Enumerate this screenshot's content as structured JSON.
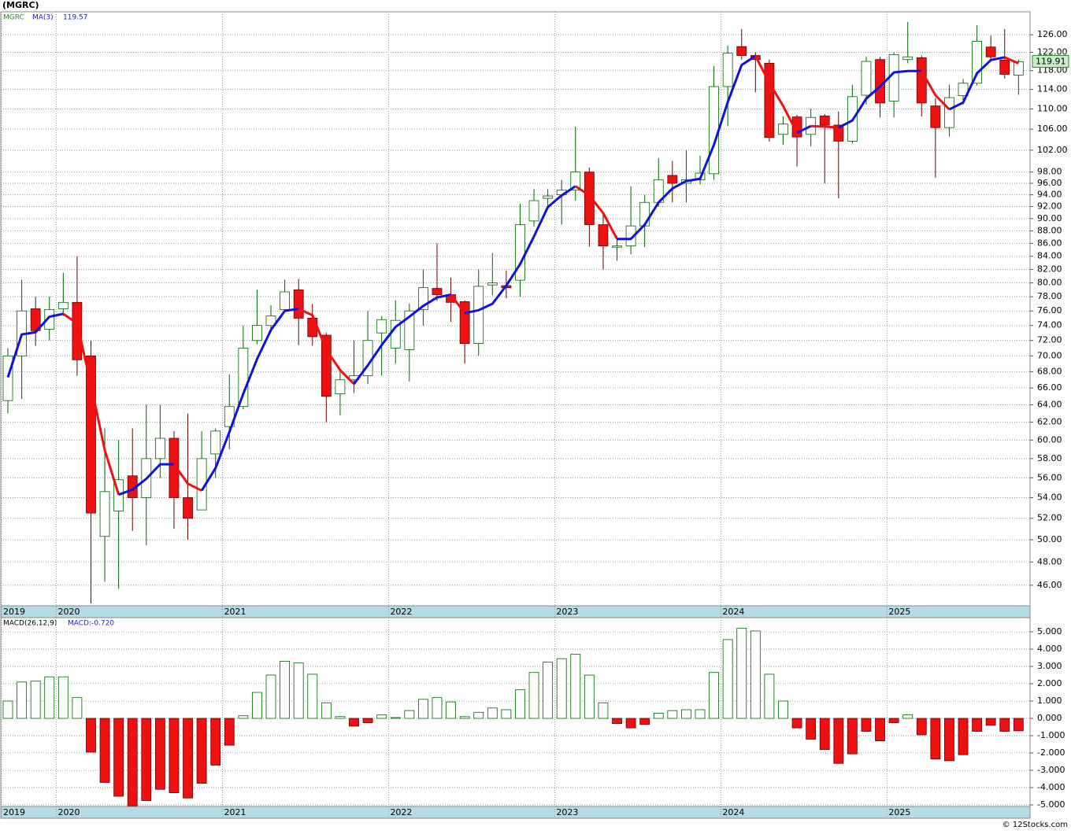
{
  "title": "(MGRC)",
  "footer": "© 12Stocks.com",
  "chart_data": [
    {
      "type": "candlestick",
      "name": "MGRC",
      "categories": [
        "2019",
        null,
        null,
        null,
        "2020",
        null,
        null,
        null,
        null,
        null,
        null,
        null,
        null,
        null,
        null,
        null,
        "2021",
        null,
        null,
        null,
        null,
        null,
        null,
        null,
        null,
        null,
        null,
        null,
        "2022",
        null,
        null,
        null,
        null,
        null,
        null,
        null,
        null,
        null,
        null,
        null,
        "2023",
        null,
        null,
        null,
        null,
        null,
        null,
        null,
        null,
        null,
        null,
        null,
        "2024",
        null,
        null,
        null,
        null,
        null,
        null,
        null,
        null,
        null,
        null,
        null,
        "2025",
        null,
        null,
        null,
        null,
        null,
        null,
        null,
        null,
        null
      ],
      "open": [
        64.5,
        70,
        76.3,
        73.5,
        76.3,
        77.2,
        70,
        50.3,
        52.7,
        56.2,
        54,
        58,
        60.2,
        54,
        52.8,
        58.5,
        61.5,
        63.8,
        72,
        74,
        76.2,
        79,
        75,
        72.7,
        65.3,
        67,
        67.5,
        73,
        71,
        70.8,
        76.2,
        79.2,
        78.3,
        77.3,
        71.6,
        79.7,
        79.6,
        80.4,
        89.6,
        93.4,
        94,
        94.8,
        98,
        89,
        85.4,
        85.6,
        88.8,
        92.7,
        97.4,
        96,
        96.6,
        97.7,
        114.6,
        123.3,
        121.3,
        119.6,
        105,
        108.4,
        105,
        108.6,
        106.8,
        103.7,
        112.8,
        120.4,
        111.6,
        120.4,
        120.8,
        110.6,
        106.3,
        112.7,
        115.3,
        123.2,
        120.3,
        117
      ],
      "high": [
        71,
        80.5,
        78,
        78,
        81.5,
        84,
        72,
        61.3,
        60,
        61.3,
        64,
        64,
        61,
        63,
        61,
        61.3,
        67.7,
        74,
        79,
        76.8,
        80.5,
        80.6,
        77,
        73,
        68.4,
        72,
        76,
        75.3,
        77.5,
        77,
        82,
        86,
        80.8,
        77.5,
        82,
        84.5,
        81.8,
        92.5,
        95,
        95,
        96.6,
        106.5,
        98.8,
        90.8,
        87.2,
        95.5,
        94,
        100.5,
        100,
        102,
        101,
        119,
        123.5,
        127.3,
        122,
        120.4,
        108.5,
        108.8,
        110,
        109,
        109.5,
        115,
        121,
        121,
        122,
        129,
        121.3,
        112.2,
        115,
        116.2,
        128.2,
        125.8,
        127.3,
        120.4
      ],
      "low": [
        63,
        64.7,
        71.3,
        72,
        75.3,
        67.5,
        44.5,
        46.3,
        45.7,
        50.8,
        49.5,
        56,
        51,
        50,
        52.8,
        56,
        59,
        63.5,
        71.5,
        73.5,
        76,
        71.4,
        71.3,
        62,
        62.8,
        65.4,
        66.5,
        67.5,
        69,
        66.8,
        74,
        77.4,
        74.5,
        69,
        70,
        78.2,
        77.8,
        78,
        88.7,
        91.5,
        89,
        93,
        85.5,
        82,
        83.3,
        84.3,
        85.4,
        92,
        92.7,
        92.7,
        95.8,
        96.6,
        106.6,
        120.4,
        113.4,
        103.6,
        103,
        99,
        102.7,
        96,
        93.4,
        103.3,
        110.9,
        108.3,
        108.3,
        119.6,
        108.5,
        97,
        104.6,
        110.8,
        114.8,
        120.3,
        116.3,
        112.9
      ],
      "close": [
        70,
        76,
        73.3,
        76.2,
        77.2,
        69.5,
        52.5,
        54.6,
        55.8,
        54,
        58,
        60.2,
        54,
        52,
        58,
        61,
        63.8,
        71,
        74,
        75.3,
        78.7,
        75,
        72.5,
        65,
        67,
        67.5,
        72,
        74.8,
        74.7,
        76,
        79.3,
        78.3,
        77.2,
        71.6,
        79.5,
        80,
        79.3,
        89,
        93,
        93.8,
        94.8,
        98,
        89,
        85.6,
        85.6,
        88.8,
        92.7,
        96.6,
        96,
        96.6,
        97.8,
        114.6,
        121.8,
        121.3,
        120.4,
        104.4,
        107,
        104.5,
        108.3,
        106.8,
        103.7,
        112.5,
        120,
        111.2,
        121.5,
        121,
        111.2,
        106.3,
        112.3,
        115.3,
        124.5,
        121,
        117.2,
        119.91
      ],
      "up_color": "#ffffff",
      "up_outline": "#006400",
      "down_color": "#ee1111",
      "down_outline": "#660000",
      "series": [
        {
          "name": "MA(3)",
          "rising_color": "#1010e0",
          "falling_color": "#ee1111",
          "values": [
            67.3,
            72.8,
            73.1,
            75.2,
            75.6,
            74.3,
            66.4,
            58.9,
            54.3,
            54.8,
            55.9,
            57.4,
            57.4,
            55.4,
            54.7,
            57,
            60.9,
            65.3,
            69.6,
            73.4,
            76,
            76.3,
            75.4,
            70.8,
            68.2,
            66.5,
            68.8,
            71.4,
            73.8,
            75.2,
            76.7,
            77.9,
            78.3,
            75.7,
            76.1,
            77,
            79.6,
            82.8,
            87.1,
            91.9,
            93.9,
            95.5,
            93.9,
            90.9,
            86.7,
            86.7,
            89,
            92.7,
            95.1,
            96.4,
            96.8,
            103,
            111.4,
            119.2,
            121.2,
            115.4,
            110.6,
            105.3,
            106.6,
            106.5,
            106.3,
            107.7,
            112.1,
            114.6,
            117.6,
            117.9,
            117.9,
            112.8,
            109.9,
            111.3,
            117.4,
            120.3,
            120.9,
            119.57
          ]
        }
      ],
      "log_scale": true,
      "grid": true,
      "ylim": [
        44.3,
        131.4
      ],
      "yticks": [
        {
          "value": 46,
          "label": "46.00"
        },
        {
          "value": 48,
          "label": "48.00"
        },
        {
          "value": 50,
          "label": "50.00"
        },
        {
          "value": 52,
          "label": "52.00"
        },
        {
          "value": 54,
          "label": "54.00"
        },
        {
          "value": 56,
          "label": "56.00"
        },
        {
          "value": 58,
          "label": "58.00"
        },
        {
          "value": 60,
          "label": "60.00"
        },
        {
          "value": 62,
          "label": "62.00"
        },
        {
          "value": 64,
          "label": "64.00"
        },
        {
          "value": 66,
          "label": "66.00"
        },
        {
          "value": 68,
          "label": "68.00"
        },
        {
          "value": 70,
          "label": "70.00"
        },
        {
          "value": 72,
          "label": "72.00"
        },
        {
          "value": 74,
          "label": "74.00"
        },
        {
          "value": 76,
          "label": "76.00"
        },
        {
          "value": 78,
          "label": "78.00"
        },
        {
          "value": 80,
          "label": "80.00"
        },
        {
          "value": 82,
          "label": "82.00"
        },
        {
          "value": 84,
          "label": "84.00"
        },
        {
          "value": 86,
          "label": "86.00"
        },
        {
          "value": 88,
          "label": "88.00"
        },
        {
          "value": 90,
          "label": "90.00"
        },
        {
          "value": 92,
          "label": "92.00"
        },
        {
          "value": 94,
          "label": "94.00"
        },
        {
          "value": 96,
          "label": "96.00"
        },
        {
          "value": 98,
          "label": "98.00"
        },
        {
          "value": 102,
          "label": "102.00"
        },
        {
          "value": 106,
          "label": "106.00"
        },
        {
          "value": 110,
          "label": "110.00"
        },
        {
          "value": 114,
          "label": "114.00"
        },
        {
          "value": 118,
          "label": "118.00"
        },
        {
          "value": 122,
          "label": "122.00"
        },
        {
          "value": 126,
          "label": "126.00"
        }
      ],
      "last_price_color": "#c8f0c8"
    },
    {
      "type": "bar",
      "name": "MACD(26,12,9)",
      "current_label": "MACD:-0.720",
      "categories": [
        "2019",
        null,
        null,
        null,
        "2020",
        null,
        null,
        null,
        null,
        null,
        null,
        null,
        null,
        null,
        null,
        null,
        "2021",
        null,
        null,
        null,
        null,
        null,
        null,
        null,
        null,
        null,
        null,
        null,
        "2022",
        null,
        null,
        null,
        null,
        null,
        null,
        null,
        null,
        null,
        null,
        null,
        "2023",
        null,
        null,
        null,
        null,
        null,
        null,
        null,
        null,
        null,
        null,
        null,
        "2024",
        null,
        null,
        null,
        null,
        null,
        null,
        null,
        null,
        null,
        null,
        null,
        "2025",
        null,
        null,
        null,
        null,
        null,
        null,
        null,
        null,
        null
      ],
      "values": [
        1.0,
        2.1,
        2.15,
        2.4,
        2.4,
        1.2,
        -1.95,
        -3.7,
        -4.5,
        -5.05,
        -4.75,
        -4.1,
        -4.3,
        -4.6,
        -3.75,
        -2.7,
        -1.55,
        0.15,
        1.5,
        2.5,
        3.3,
        3.2,
        2.55,
        0.9,
        0.1,
        -0.45,
        -0.25,
        0.2,
        0.05,
        0.45,
        1.1,
        1.2,
        0.95,
        0.1,
        0.35,
        0.6,
        0.5,
        1.65,
        2.65,
        3.25,
        3.45,
        3.7,
        2.5,
        0.9,
        -0.3,
        -0.55,
        -0.35,
        0.3,
        0.45,
        0.5,
        0.5,
        2.65,
        4.55,
        5.2,
        5.05,
        2.55,
        1.0,
        -0.55,
        -1.2,
        -1.8,
        -2.6,
        -2.05,
        -0.75,
        -1.3,
        -0.25,
        0.2,
        -0.95,
        -2.35,
        -2.45,
        -2.1,
        -0.75,
        -0.4,
        -0.75,
        -0.72
      ],
      "positive_color": "#ffffff",
      "positive_outline": "#006400",
      "negative_color": "#ee1111",
      "negative_outline": "#660000",
      "grid": true,
      "ylim": [
        -5.09,
        5.82
      ],
      "yticks": [
        {
          "value": 5,
          "label": "5.000"
        },
        {
          "value": 4,
          "label": "4.000"
        },
        {
          "value": 3,
          "label": "3.000"
        },
        {
          "value": 2,
          "label": "2.000"
        },
        {
          "value": 1,
          "label": "1.000"
        },
        {
          "value": 0,
          "label": "0.000"
        },
        {
          "value": -1,
          "label": "-1.000"
        },
        {
          "value": -2,
          "label": "-2.000"
        },
        {
          "value": -3,
          "label": "-3.000"
        },
        {
          "value": -4,
          "label": "-4.000"
        },
        {
          "value": -5,
          "label": "-5.000"
        }
      ]
    }
  ]
}
